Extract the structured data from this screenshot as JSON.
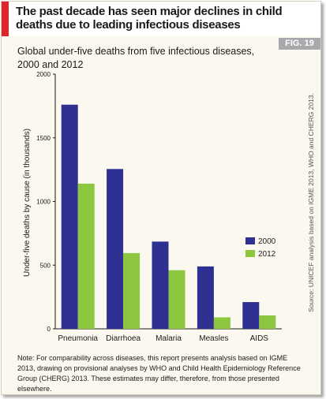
{
  "header": {
    "title": "The past decade has seen major declines in child deaths due to leading infectious diseases",
    "accent_color": "#e2242b"
  },
  "fig_tag": {
    "label": "FIG. 19",
    "color": "#a7a9ac"
  },
  "note": "Note: For comparability across diseases, this report presents analysis based on IGME 2013, drawing on provisional analyses by WHO and Child Health Epidemiology Reference Group (CHERG) 2013. These estimates may differ, therefore, from those presented elsewhere.",
  "source": "Source: UNICEF analysis based on IGME 2013, WHO and CHERG 2013.",
  "chart_data": {
    "type": "bar",
    "title": "Global under-five deaths from five infectious diseases, 2000 and 2012",
    "xlabel": "",
    "ylabel": "Under-five deaths by cause (in thousands)",
    "categories": [
      "Pneumonia",
      "Diarrhoea",
      "Malaria",
      "Measles",
      "AIDS"
    ],
    "series": [
      {
        "name": "2000",
        "color": "#2e3192",
        "values": [
          1760,
          1255,
          685,
          490,
          210
        ]
      },
      {
        "name": "2012",
        "color": "#8dc63f",
        "values": [
          1140,
          595,
          460,
          90,
          105
        ]
      }
    ],
    "ylim": [
      0,
      2000
    ],
    "yticks": [
      "0",
      "500",
      "1000",
      "1500",
      "2000"
    ],
    "ytick_values": [
      0,
      500,
      1000,
      1500,
      2000
    ],
    "grid": false,
    "legend_position": "right"
  }
}
